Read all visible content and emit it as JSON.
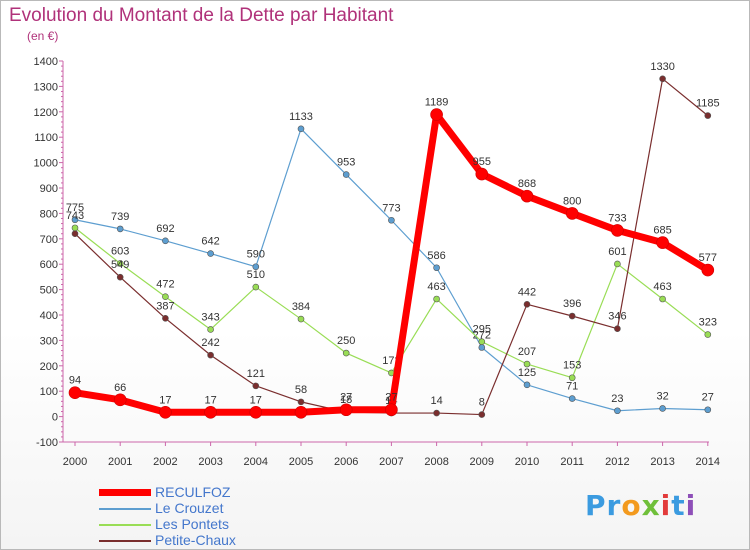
{
  "header": {
    "title": "Evolution du Montant de la Dette par Habitant",
    "unit": "(en €)"
  },
  "logo": {
    "text": "Proxiti",
    "letters": [
      "P",
      "r",
      "o",
      "x",
      "i",
      "t",
      "i"
    ],
    "colors": [
      "#3b9be0",
      "#3b9be0",
      "#f39a1e",
      "#6fbf3a",
      "#e23b3b",
      "#3b9be0",
      "#8e4fb8"
    ]
  },
  "chart_data": {
    "type": "line",
    "title": "Evolution du Montant de la Dette par Habitant",
    "ylabel": "(en €)",
    "xlabel": "",
    "ylim": [
      -100,
      1400
    ],
    "yticks": [
      "-100",
      "0",
      "100",
      "200",
      "300",
      "400",
      "500",
      "600",
      "700",
      "800",
      "900",
      "1000",
      "1100",
      "1200",
      "1300",
      "1400"
    ],
    "categories": [
      "2000",
      "2001",
      "2002",
      "2003",
      "2004",
      "2005",
      "2006",
      "2007",
      "2008",
      "2009",
      "2010",
      "2011",
      "2012",
      "2013",
      "2014"
    ],
    "grid": false,
    "legend_position": "bottom-left",
    "series": [
      {
        "name": "Le Crouzet",
        "color": "#5d9ed0",
        "width": 1.2,
        "values": [
          775,
          739,
          692,
          642,
          590,
          1133,
          953,
          773,
          586,
          272,
          125,
          71,
          23,
          32,
          27
        ],
        "labels": [
          "775",
          "739",
          "692",
          "642",
          "590",
          "1133",
          "953",
          "773",
          "586",
          "272",
          "125",
          "71",
          "23",
          "32",
          "27"
        ]
      },
      {
        "name": "Les Pontets",
        "color": "#99dd55",
        "width": 1.2,
        "values": [
          743,
          603,
          472,
          343,
          510,
          384,
          250,
          172,
          463,
          295,
          207,
          153,
          601,
          463,
          323
        ],
        "labels": [
          "743",
          "603",
          "472",
          "343",
          "510",
          "384",
          "250",
          "172",
          "463",
          "295",
          "207",
          "153",
          "601",
          "463",
          "323"
        ]
      },
      {
        "name": "Petite-Chaux",
        "color": "#7a2e2e",
        "width": 1.2,
        "values": [
          720,
          549,
          387,
          242,
          121,
          58,
          18,
          14,
          14,
          8,
          442,
          396,
          346,
          1330,
          1185
        ],
        "labels": [
          "",
          "549",
          "387",
          "242",
          "121",
          "58",
          "18",
          "14",
          "14",
          "8",
          "442",
          "396",
          "346",
          "1330",
          "1185"
        ]
      },
      {
        "name": "RECULFOZ",
        "color": "#ff0000",
        "width": 7,
        "values": [
          94,
          66,
          17,
          17,
          17,
          17,
          27,
          27,
          1189,
          955,
          868,
          800,
          733,
          685,
          577
        ],
        "labels": [
          "94",
          "66",
          "17",
          "17",
          "17",
          "",
          "27",
          "27",
          "1189",
          "955",
          "868",
          "800",
          "733",
          "685",
          "577"
        ]
      }
    ]
  },
  "legend": {
    "items": [
      {
        "name": "RECULFOZ",
        "color": "#ff0000"
      },
      {
        "name": "Le Crouzet",
        "color": "#5d9ed0"
      },
      {
        "name": "Les Pontets",
        "color": "#99dd55"
      },
      {
        "name": "Petite-Chaux",
        "color": "#7a2e2e"
      }
    ]
  }
}
